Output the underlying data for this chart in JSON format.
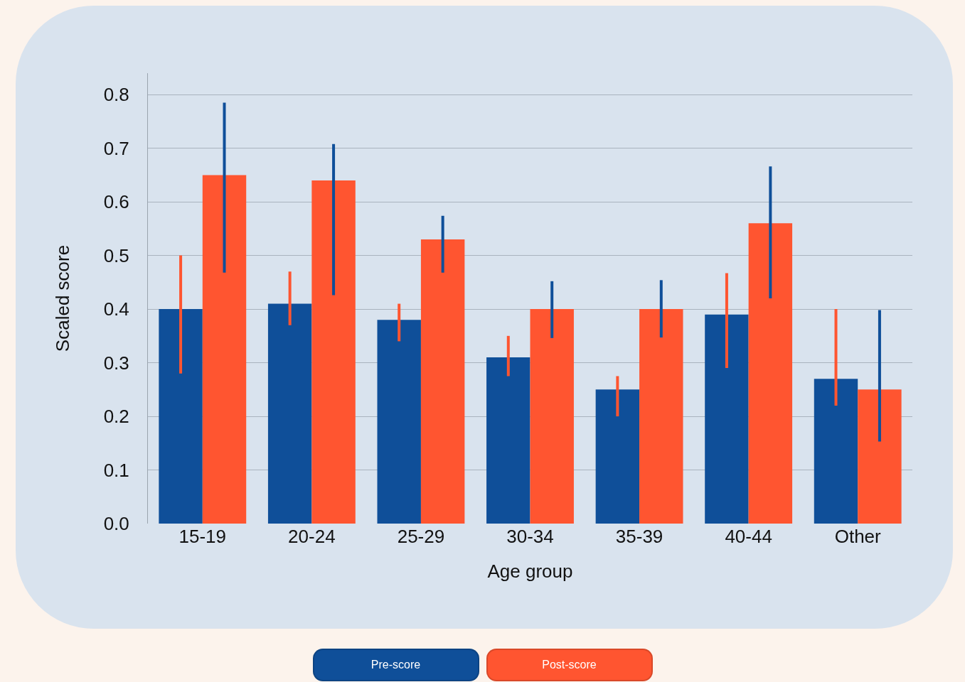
{
  "chart_data": {
    "type": "bar",
    "xlabel": "Age group",
    "ylabel": "Scaled score",
    "categories": [
      "15-19",
      "20-24",
      "25-29",
      "30-34",
      "35-39",
      "40-44",
      "Other"
    ],
    "series": [
      {
        "name": "Pre-score",
        "color": "#0f4f99",
        "values": [
          0.4,
          0.41,
          0.38,
          0.31,
          0.25,
          0.39,
          0.27
        ],
        "errors": [
          [
            0.28,
            0.5
          ],
          [
            0.37,
            0.47
          ],
          [
            0.34,
            0.41
          ],
          [
            0.275,
            0.35
          ],
          [
            0.2,
            0.275
          ],
          [
            0.29,
            0.467
          ],
          [
            0.22,
            0.4
          ]
        ]
      },
      {
        "name": "Post-score",
        "color": "#ff5530",
        "values": [
          0.65,
          0.64,
          0.53,
          0.4,
          0.4,
          0.56,
          0.25
        ],
        "errors": [
          [
            0.468,
            0.785
          ],
          [
            0.426,
            0.708
          ],
          [
            0.468,
            0.574
          ],
          [
            0.346,
            0.452
          ],
          [
            0.347,
            0.454
          ],
          [
            0.42,
            0.666
          ],
          [
            0.153,
            0.398
          ]
        ]
      }
    ],
    "ylim": [
      0,
      0.84
    ],
    "yticks": [
      {
        "value": 0,
        "label": "0.0"
      },
      0.1,
      0.2,
      0.3,
      0.4,
      0.5,
      0.6,
      0.7,
      0.8
    ],
    "grid": "y",
    "legend": "bottom"
  }
}
